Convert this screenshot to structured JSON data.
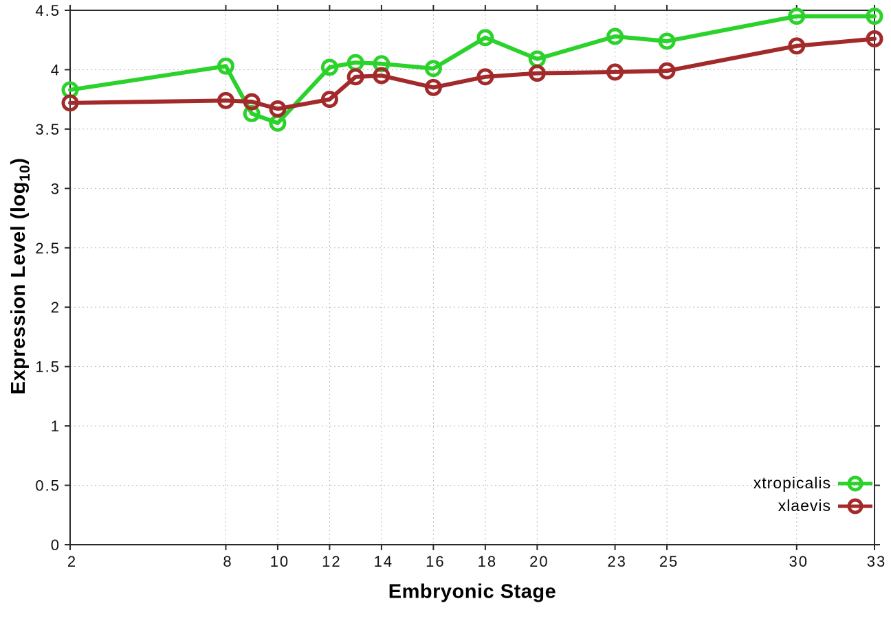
{
  "chart_data": {
    "type": "line",
    "x": [
      2,
      8,
      9,
      10,
      12,
      13,
      14,
      16,
      18,
      20,
      23,
      25,
      30,
      33
    ],
    "series": [
      {
        "name": "xtropicalis",
        "color": "#2bd22b",
        "values": [
          3.83,
          4.03,
          3.63,
          3.55,
          4.02,
          4.06,
          4.05,
          4.01,
          4.27,
          4.09,
          4.28,
          4.24,
          4.45,
          4.45
        ]
      },
      {
        "name": "xlaevis",
        "color": "#a32a2a",
        "values": [
          3.72,
          3.74,
          3.73,
          3.67,
          3.75,
          3.94,
          3.95,
          3.85,
          3.94,
          3.97,
          3.98,
          3.99,
          4.2,
          4.26
        ]
      }
    ],
    "xlabel": "Embryonic Stage",
    "ylabel": "Expression Level (log10)",
    "ylabel_parts": {
      "prefix": "Expression Level (log",
      "sub": "10",
      "suffix": ")"
    },
    "xlim": [
      2,
      33
    ],
    "ylim": [
      0,
      4.5
    ],
    "xticks": [
      2,
      8,
      10,
      12,
      14,
      16,
      18,
      20,
      23,
      25,
      30,
      33
    ],
    "xtick_labels": [
      "2",
      "8",
      "10",
      "12",
      "14",
      "16",
      "18",
      "20",
      "23",
      "25",
      "30",
      "33"
    ],
    "yticks": [
      0,
      0.5,
      1,
      1.5,
      2,
      2.5,
      3,
      3.5,
      4,
      4.5
    ],
    "ytick_labels": [
      "0",
      "0.5",
      "1",
      "1.5",
      "2",
      "2.5",
      "3",
      "3.5",
      "4",
      "4.5"
    ],
    "grid": true,
    "legend_position": "bottom-right",
    "colors": {
      "background": "#ffffff",
      "grid": "#bbbbbb",
      "axis": "#2a2a2a",
      "tick_text": "#111111"
    }
  }
}
